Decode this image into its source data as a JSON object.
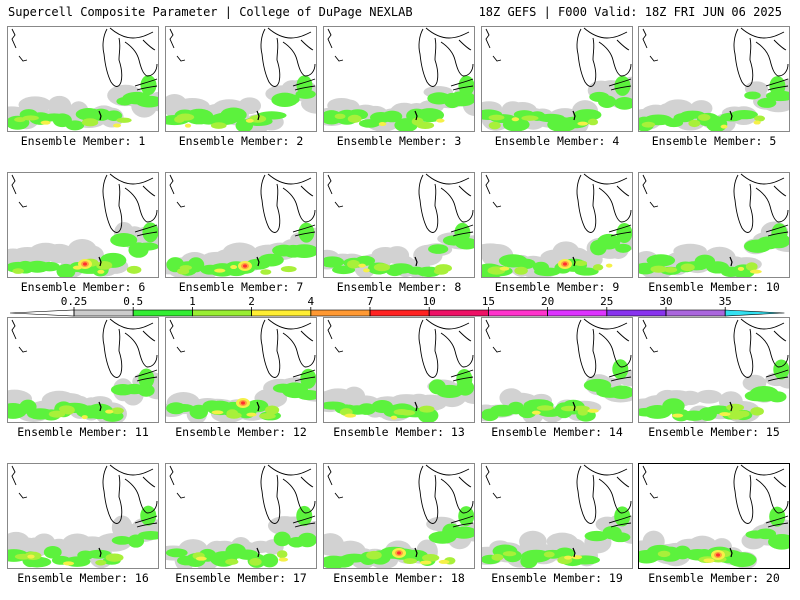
{
  "header": {
    "title": "Supercell Composite Parameter | College of DuPage NEXLAB",
    "run_info": "18Z GEFS | F000 Valid: 18Z FRI JUN 06 2025"
  },
  "panels": [
    {
      "label": "Ensemble Member: 1"
    },
    {
      "label": "Ensemble Member: 2"
    },
    {
      "label": "Ensemble Member: 3"
    },
    {
      "label": "Ensemble Member: 4"
    },
    {
      "label": "Ensemble Member: 5"
    },
    {
      "label": "Ensemble Member: 6"
    },
    {
      "label": "Ensemble Member: 7"
    },
    {
      "label": "Ensemble Member: 8"
    },
    {
      "label": "Ensemble Member: 9"
    },
    {
      "label": "Ensemble Member: 10"
    },
    {
      "label": "Ensemble Member: 11"
    },
    {
      "label": "Ensemble Member: 12"
    },
    {
      "label": "Ensemble Member: 13"
    },
    {
      "label": "Ensemble Member: 14"
    },
    {
      "label": "Ensemble Member: 15"
    },
    {
      "label": "Ensemble Member: 16"
    },
    {
      "label": "Ensemble Member: 17"
    },
    {
      "label": "Ensemble Member: 18"
    },
    {
      "label": "Ensemble Member: 19"
    },
    {
      "label": "Ensemble Member: 20"
    }
  ],
  "legend": {
    "ticks": [
      "0.25",
      "0.5",
      "1",
      "2",
      "4",
      "7",
      "10",
      "15",
      "20",
      "25",
      "30",
      "35"
    ],
    "colors": [
      "#cccccc",
      "#33ee33",
      "#99ee33",
      "#ffee33",
      "#ff9933",
      "#ff2222",
      "#ee1166",
      "#ff33cc",
      "#dd33ff",
      "#8833ee",
      "#aa66dd",
      "#33e0f0"
    ]
  },
  "map": {
    "shading": {
      "light": "#d2d2d2",
      "green": "#5cf23d",
      "lime": "#a8f03a",
      "yellow": "#f5f048",
      "orange": "#ffa040",
      "red": "#ff3030"
    },
    "highlighted_panel": "Ensemble Member: 20"
  }
}
